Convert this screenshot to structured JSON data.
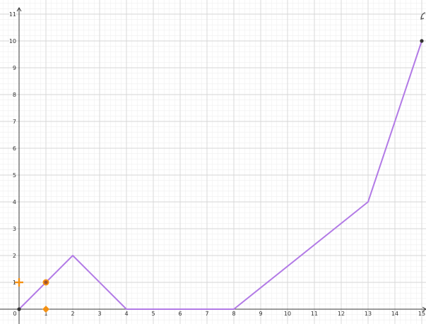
{
  "colors": {
    "background": "#ffffff",
    "function_line": "#b27ae6",
    "axis": "#3a3a3a",
    "grid_major": "#d6d6d6",
    "grid_minor": "#efefef",
    "points": "#333333",
    "handles": "#f39012"
  },
  "chart_data": {
    "type": "line",
    "title": "",
    "xlabel": "",
    "ylabel": "",
    "xlim": [
      0,
      15
    ],
    "ylim": [
      0,
      11
    ],
    "grid": true,
    "x_ticks": [
      "0",
      "1",
      "2",
      "3",
      "4",
      "5",
      "6",
      "7",
      "8",
      "9",
      "10",
      "11",
      "12",
      "13",
      "14",
      "15"
    ],
    "y_ticks": [
      "1",
      "2",
      "3",
      "4",
      "5",
      "6",
      "7",
      "8",
      "9",
      "10",
      "11"
    ],
    "series": [
      {
        "x": [
          0,
          2,
          4,
          8,
          13,
          15
        ],
        "y": [
          0,
          2,
          0,
          0,
          4,
          10
        ]
      }
    ],
    "points": [
      {
        "x": 0,
        "y": 0
      },
      {
        "x": 15,
        "y": 10
      }
    ]
  },
  "drag_handles": [
    {
      "role": "point",
      "x": 1,
      "y": 1,
      "icon": "circle-handle-icon"
    },
    {
      "role": "y-slider",
      "x": 0,
      "y": 1,
      "icon": "plus-handle-icon"
    },
    {
      "role": "x-slider",
      "x": 1,
      "y": 0,
      "icon": "diamond-handle-icon"
    }
  ],
  "corner_icon": "curved-arrow-icon"
}
